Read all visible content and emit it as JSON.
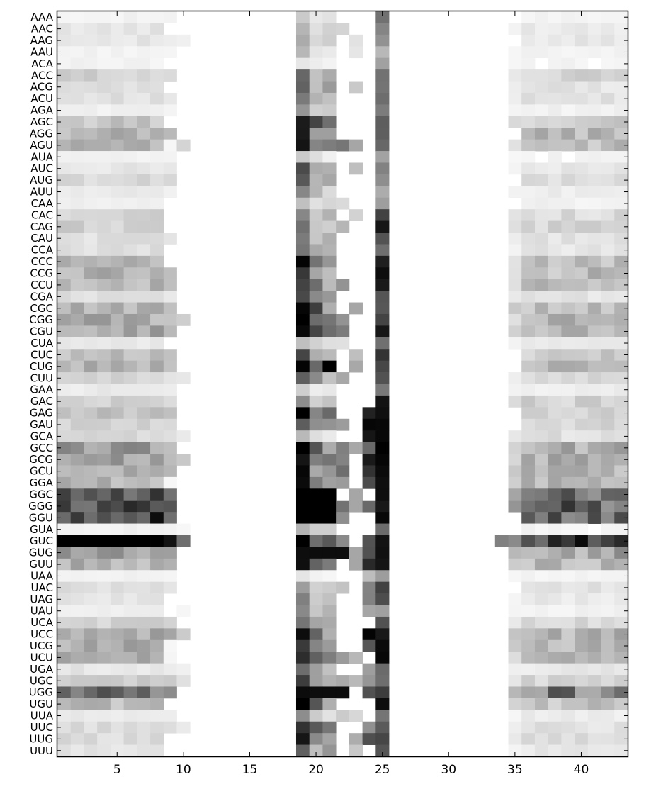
{
  "chart_data": {
    "type": "heatmap",
    "title": "",
    "xlabel": "",
    "ylabel": "",
    "colormap": "grayscale (white = low, black = high)",
    "xlim": [
      0.5,
      43.5
    ],
    "x_ticks": [
      5,
      10,
      15,
      20,
      25,
      30,
      35,
      40
    ],
    "x_tick_labels": [
      "5",
      "10",
      "15",
      "20",
      "25",
      "30",
      "35",
      "40"
    ],
    "rows": [
      "AAA",
      "AAC",
      "AAG",
      "AAU",
      "ACA",
      "ACC",
      "ACG",
      "ACU",
      "AGA",
      "AGC",
      "AGG",
      "AGU",
      "AUA",
      "AUC",
      "AUG",
      "AUU",
      "CAA",
      "CAC",
      "CAG",
      "CAU",
      "CCA",
      "CCC",
      "CCG",
      "CCU",
      "CGA",
      "CGC",
      "CGG",
      "CGU",
      "CUA",
      "CUC",
      "CUG",
      "CUU",
      "GAA",
      "GAC",
      "GAG",
      "GAU",
      "GCA",
      "GCC",
      "GCG",
      "GCU",
      "GGA",
      "GGC",
      "GGG",
      "GGU",
      "GUA",
      "GUC",
      "GUG",
      "GUU",
      "UAA",
      "UAC",
      "UAG",
      "UAU",
      "UCA",
      "UCC",
      "UCG",
      "UCU",
      "UGA",
      "UGC",
      "UGG",
      "UGU",
      "UUA",
      "UUC",
      "UUG",
      "UUU"
    ],
    "row_intensity": [
      0.05,
      0.1,
      0.1,
      0.05,
      0.05,
      0.18,
      0.12,
      0.12,
      0.06,
      0.22,
      0.3,
      0.28,
      0.05,
      0.1,
      0.15,
      0.08,
      0.06,
      0.16,
      0.18,
      0.12,
      0.12,
      0.28,
      0.3,
      0.28,
      0.12,
      0.3,
      0.32,
      0.34,
      0.08,
      0.24,
      0.32,
      0.16,
      0.08,
      0.2,
      0.24,
      0.18,
      0.14,
      0.38,
      0.36,
      0.3,
      0.3,
      0.62,
      0.72,
      0.78,
      0.05,
      0.95,
      0.4,
      0.3,
      0.05,
      0.12,
      0.1,
      0.06,
      0.18,
      0.34,
      0.32,
      0.3,
      0.1,
      0.2,
      0.58,
      0.26,
      0.08,
      0.14,
      0.14,
      0.1
    ],
    "col19_intensity": [
      0.2,
      0.3,
      0.32,
      0.28,
      0.1,
      0.65,
      0.6,
      0.55,
      0.4,
      0.98,
      0.92,
      1.0,
      0.2,
      0.72,
      0.65,
      0.45,
      0.25,
      0.5,
      0.55,
      0.52,
      0.55,
      0.95,
      0.75,
      0.72,
      0.72,
      1.0,
      1.0,
      0.98,
      0.25,
      0.72,
      0.98,
      0.6,
      0.2,
      0.45,
      0.98,
      0.7,
      0.3,
      0.98,
      0.98,
      0.95,
      0.92,
      1.0,
      1.0,
      1.0,
      0.3,
      1.0,
      1.0,
      1.0,
      0.1,
      0.4,
      0.52,
      0.48,
      0.52,
      0.98,
      0.85,
      0.8,
      0.55,
      0.78,
      0.98,
      1.0,
      0.45,
      0.82,
      0.92,
      0.62
    ],
    "col25_intensity": [
      0.6,
      0.5,
      0.45,
      0.3,
      0.4,
      0.6,
      0.6,
      0.62,
      0.55,
      0.65,
      0.65,
      0.65,
      0.4,
      0.5,
      0.45,
      0.35,
      0.4,
      0.75,
      0.98,
      0.7,
      0.62,
      0.95,
      0.95,
      0.95,
      0.7,
      0.72,
      0.75,
      0.98,
      0.6,
      0.88,
      0.8,
      0.72,
      0.55,
      0.98,
      0.98,
      0.98,
      0.98,
      1.0,
      1.0,
      1.0,
      1.0,
      1.0,
      1.0,
      1.0,
      0.6,
      1.0,
      1.0,
      1.0,
      0.4,
      0.75,
      0.7,
      0.4,
      0.7,
      1.0,
      1.0,
      1.0,
      0.6,
      0.62,
      0.82,
      1.0,
      0.55,
      0.65,
      0.75,
      0.7
    ],
    "active_column_groups": [
      "1-10",
      "18-23",
      "24-25",
      "34-43"
    ]
  }
}
